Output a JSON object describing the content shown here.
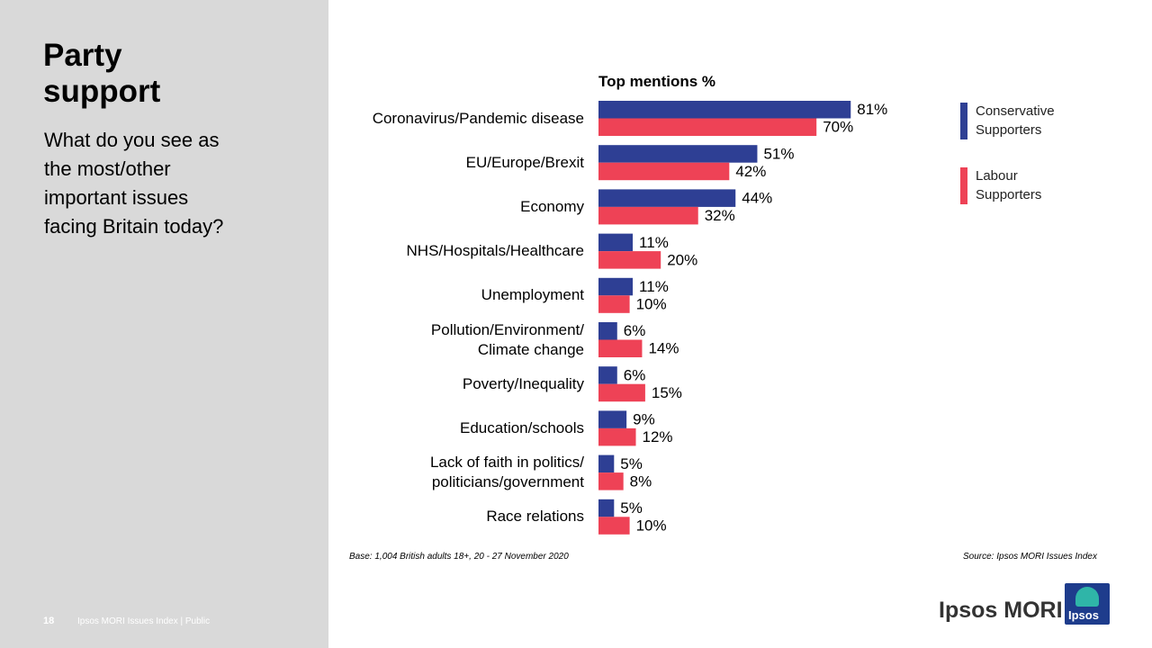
{
  "slide": {
    "title": "Party\nsupport",
    "question": "What do you see as\nthe most/other\nimportant issues\nfacing Britain today?",
    "base": "Base: 1,004 British adults 18+, 20 - 27 November 2020",
    "source": "Source: Ipsos MORI Issues Index",
    "page_number": "18",
    "footer": "Ipsos MORI Issues Index | Public",
    "brand": "Ipsos MORI",
    "logo": "Ipsos"
  },
  "chart_data": {
    "type": "hbar",
    "title": "Top mentions %",
    "categories": [
      "Coronavirus/Pandemic disease",
      "EU/Europe/Brexit",
      "Economy",
      "NHS/Hospitals/Healthcare",
      "Unemployment",
      "Pollution/Environment/\nClimate change",
      "Poverty/Inequality",
      "Education/schools",
      "Lack of faith in politics/\npoliticians/government",
      "Race relations"
    ],
    "series": [
      {
        "name": "Conservative\nSupporters",
        "color": "#2e3f94",
        "values": [
          81,
          51,
          44,
          11,
          11,
          6,
          6,
          9,
          5,
          5
        ],
        "value_labels": [
          "81%",
          "51%",
          "44%",
          "11%",
          "11%",
          "6%",
          "6%",
          "9%",
          "5%",
          "5%"
        ]
      },
      {
        "name": "Labour\nSupporters",
        "color": "#ee4256",
        "values": [
          70,
          42,
          32,
          20,
          10,
          14,
          15,
          12,
          8,
          10
        ],
        "value_labels": [
          "70%",
          "42%",
          "32%",
          "20%",
          "10%",
          "14%",
          "15%",
          "12%",
          "8%",
          "10%"
        ]
      }
    ],
    "xlim": [
      0,
      100
    ],
    "legend": "right"
  }
}
